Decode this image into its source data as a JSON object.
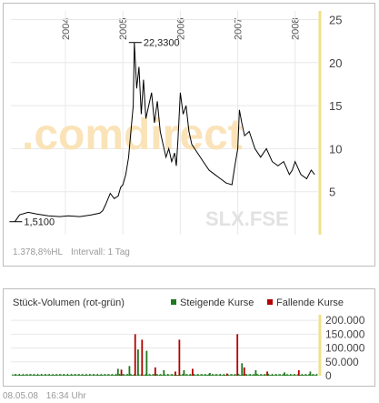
{
  "chart_data": [
    {
      "type": "line",
      "ticker_watermark": "SLX.FSE",
      "brand_watermark": ".comdirect",
      "x_tick_labels": [
        "2004",
        "2005",
        "2006",
        "2007",
        "2008"
      ],
      "y_tick_labels": [
        "5",
        "10",
        "15",
        "20",
        "25"
      ],
      "ylim": [
        0,
        26
      ],
      "grid": true,
      "series": [
        {
          "x": [
            2003.12,
            2003.2,
            2003.35,
            2003.5,
            2003.7,
            2003.9,
            2004.05,
            2004.25,
            2004.45,
            2004.6,
            2004.65,
            2004.7,
            2004.78,
            2004.85,
            2004.92,
            2004.96,
            2005.0,
            2005.05,
            2005.1,
            2005.14,
            2005.18,
            2005.2,
            2005.24,
            2005.28,
            2005.32,
            2005.36,
            2005.4,
            2005.45,
            2005.5,
            2005.55,
            2005.6,
            2005.65,
            2005.7,
            2005.75,
            2005.8,
            2005.85,
            2005.9,
            2005.93,
            2005.96,
            2006.0,
            2006.05,
            2006.1,
            2006.15,
            2006.2,
            2006.3,
            2006.4,
            2006.5,
            2006.6,
            2006.7,
            2006.8,
            2006.9,
            2006.95,
            2007.0,
            2007.03,
            2007.07,
            2007.12,
            2007.2,
            2007.3,
            2007.4,
            2007.5,
            2007.6,
            2007.7,
            2007.8,
            2007.9,
            2007.95,
            2008.0,
            2008.1,
            2008.2,
            2008.28,
            2008.34
          ],
          "y": [
            1.51,
            2.3,
            2.6,
            2.4,
            2.2,
            2.1,
            2.2,
            2.1,
            2.3,
            2.5,
            2.8,
            3.5,
            4.8,
            4.2,
            4.5,
            5.5,
            5.8,
            7.0,
            9.0,
            12.0,
            15.0,
            22.33,
            17.0,
            19.5,
            14.0,
            18.0,
            13.5,
            15.0,
            16.5,
            13.0,
            15.5,
            12.0,
            10.5,
            9.0,
            10.0,
            8.5,
            9.5,
            8.0,
            11.0,
            16.5,
            14.0,
            15.0,
            12.0,
            10.5,
            9.5,
            8.5,
            7.5,
            7.0,
            6.5,
            6.0,
            5.8,
            8.0,
            10.0,
            14.5,
            13.0,
            11.5,
            12.0,
            10.0,
            9.0,
            10.0,
            8.5,
            8.0,
            8.5,
            7.0,
            7.5,
            8.5,
            7.0,
            6.5,
            7.5,
            7.0
          ]
        }
      ],
      "annotations": [
        {
          "label": "22,3300",
          "x": 2005.2,
          "y": 22.33
        },
        {
          "label": "1,5100",
          "x": 2003.12,
          "y": 1.51
        }
      ],
      "footer_left": "1.378,8%HL",
      "footer_right": "Intervall: 1 Tag"
    },
    {
      "type": "bar",
      "title": "Stück-Volumen (rot-grün)",
      "legend": [
        {
          "name": "Steigende Kurse",
          "color": "#1e7a1e"
        },
        {
          "name": "Fallende Kurse",
          "color": "#b30000"
        }
      ],
      "legend_placement": "top-right",
      "y_tick_labels": [
        "200.000",
        "150.000",
        "100.000",
        "50.000",
        "0"
      ],
      "ylim": [
        0,
        220000
      ],
      "x": [
        2004.9,
        2004.96,
        2005.1,
        2005.2,
        2005.25,
        2005.32,
        2005.4,
        2005.55,
        2005.7,
        2005.9,
        2005.97,
        2006.05,
        2006.2,
        2006.5,
        2006.8,
        2006.98,
        2007.06,
        2007.1,
        2007.3,
        2007.5,
        2007.8,
        2008.05,
        2008.25
      ],
      "values": [
        25000,
        22000,
        35000,
        150000,
        95000,
        130000,
        90000,
        30000,
        20000,
        15000,
        130000,
        20000,
        25000,
        10000,
        8000,
        150000,
        45000,
        30000,
        20000,
        15000,
        12000,
        20000,
        15000
      ],
      "colors": [
        "g",
        "r",
        "g",
        "r",
        "g",
        "r",
        "g",
        "r",
        "g",
        "r",
        "r",
        "g",
        "r",
        "g",
        "r",
        "r",
        "g",
        "r",
        "g",
        "r",
        "g",
        "r",
        "g"
      ],
      "baseline_volume": 5000
    }
  ],
  "colors": {
    "line": "#000000",
    "price_axis": "#f2e08a",
    "volume_axis": "#f2e08a",
    "grid": "#e8e8e8",
    "watermark": "#e2e2e2",
    "brand_orange": "#fae3b8",
    "up": "#1e7a1e",
    "down": "#b30000"
  },
  "footer": {
    "date": "08.05.08",
    "time": "16:34 Uhr"
  }
}
